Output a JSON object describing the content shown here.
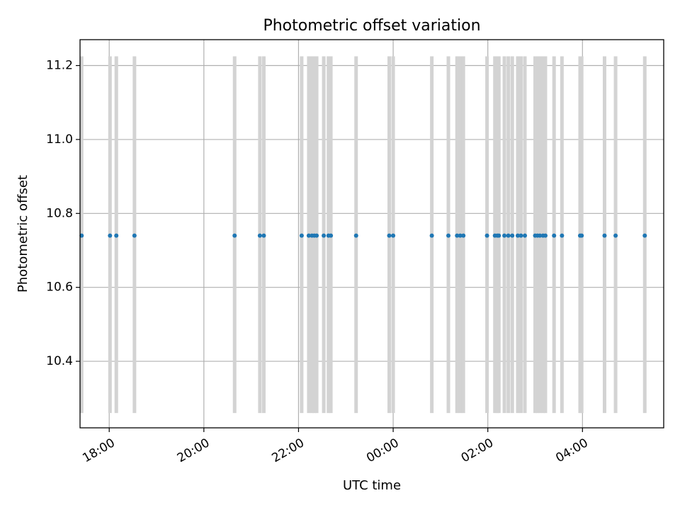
{
  "chart_data": {
    "type": "scatter",
    "title": "Photometric offset variation",
    "xlabel": "UTC time",
    "ylabel": "Photometric offset",
    "grid": true,
    "x_axis": {
      "kind": "time",
      "range": [
        "17:23",
        "05:43"
      ],
      "ticks": [
        "18:00",
        "20:00",
        "22:00",
        "00:00",
        "02:00",
        "04:00"
      ],
      "tick_rotation_deg": 30
    },
    "y_axis": {
      "range": [
        10.22,
        11.27
      ],
      "ticks": [
        "10.4",
        "10.6",
        "10.8",
        "11.0",
        "11.2"
      ]
    },
    "error_bar_span": [
      10.26,
      11.225
    ],
    "error_bar_color": "#d3d3d3",
    "point_color": "#1f77b4",
    "x": [
      "17:25",
      "18:01",
      "18:09",
      "18:32",
      "20:39",
      "21:11",
      "21:16",
      "22:04",
      "22:13",
      "22:17",
      "22:20",
      "22:23",
      "22:32",
      "22:38",
      "22:41",
      "23:13",
      "23:55",
      "00:00",
      "00:49",
      "01:10",
      "01:21",
      "01:25",
      "01:29",
      "01:59",
      "02:09",
      "02:12",
      "02:14",
      "02:21",
      "02:26",
      "02:31",
      "02:38",
      "02:42",
      "02:47",
      "03:00",
      "03:03",
      "03:06",
      "03:10",
      "03:13",
      "03:24",
      "03:34",
      "03:57",
      "03:59",
      "04:28",
      "04:42",
      "05:19"
    ],
    "y": [
      10.74,
      10.74,
      10.74,
      10.74,
      10.74,
      10.74,
      10.74,
      10.74,
      10.74,
      10.74,
      10.74,
      10.74,
      10.74,
      10.74,
      10.74,
      10.74,
      10.74,
      10.74,
      10.74,
      10.74,
      10.74,
      10.74,
      10.74,
      10.74,
      10.74,
      10.74,
      10.74,
      10.74,
      10.74,
      10.74,
      10.74,
      10.74,
      10.74,
      10.74,
      10.74,
      10.74,
      10.74,
      10.74,
      10.74,
      10.74,
      10.74,
      10.74,
      10.74,
      10.74,
      10.74
    ]
  }
}
